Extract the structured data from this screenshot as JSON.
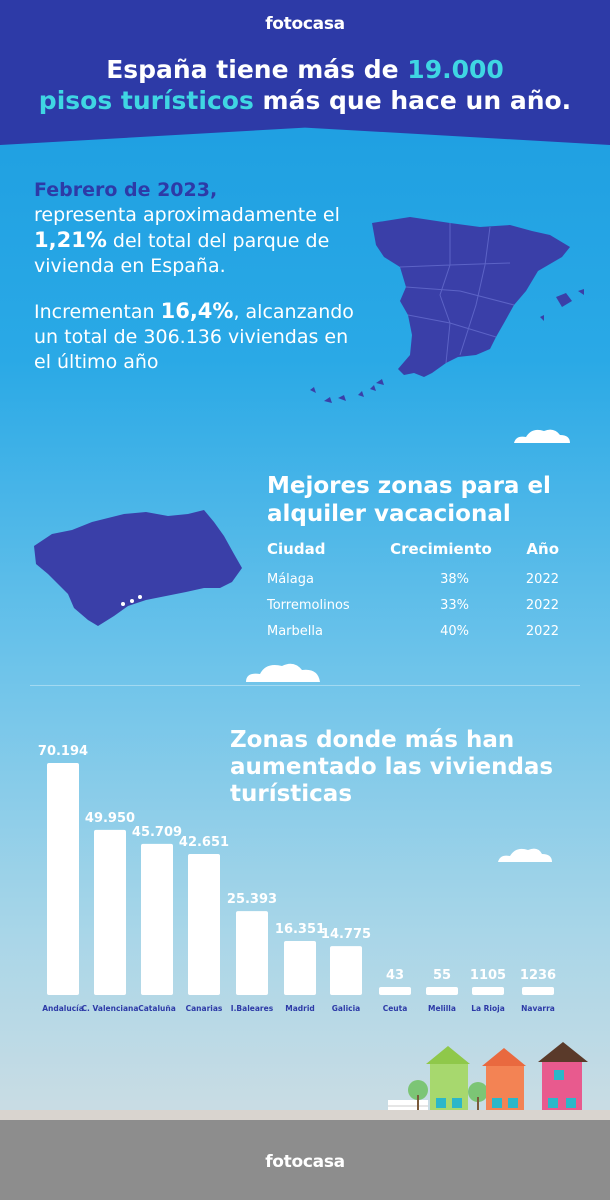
{
  "brand": "fotocasa",
  "title": {
    "line1_pre": "España tiene más de ",
    "line1_hl": "19.000",
    "line2_hl": "pisos turísticos",
    "line2_post": " más que hace un año."
  },
  "intro": {
    "date": "Febrero de 2023,",
    "p1_a": "representa aproximadamente el ",
    "p1_value": "1,21%",
    "p1_b": " del total del parque de vivienda en España.",
    "p2_a": "Incrementan ",
    "p2_value": "16,4%",
    "p2_b": ", alcanzando un total de 306.136 viviendas en el último año"
  },
  "zones": {
    "title": "Mejores zonas para el alquiler vacacional",
    "headers": [
      "Ciudad",
      "Crecimiento",
      "Año"
    ],
    "rows": [
      [
        "Málaga",
        "38%",
        "2022"
      ],
      [
        "Torremolinos",
        "33%",
        "2022"
      ],
      [
        "Marbella",
        "40%",
        "2022"
      ]
    ]
  },
  "chart_data": {
    "type": "bar",
    "title": "Zonas donde más han aumentado las viviendas turísticas",
    "categories": [
      "Andalucía",
      "C. Valenciana",
      "Cataluña",
      "Canarias",
      "I.Baleares",
      "Madrid",
      "Galicia",
      "Ceuta",
      "Melilla",
      "La Rioja",
      "Navarra"
    ],
    "values": [
      70194,
      49950,
      45709,
      42651,
      25393,
      16351,
      14775,
      43,
      55,
      1105,
      1236
    ],
    "value_labels": [
      "70.194",
      "49.950",
      "45.709",
      "42.651",
      "25.393",
      "16.351",
      "14.775",
      "43",
      "55",
      "1105",
      "1236"
    ],
    "grid": false,
    "legend": "none"
  },
  "colors": {
    "header": "#2d3aa7",
    "map": "#3a3fa8",
    "highlight": "#3fd6e3",
    "bar": "#ffffff",
    "category_label": "#2d3aa7",
    "footer": "#8d8d8d"
  }
}
